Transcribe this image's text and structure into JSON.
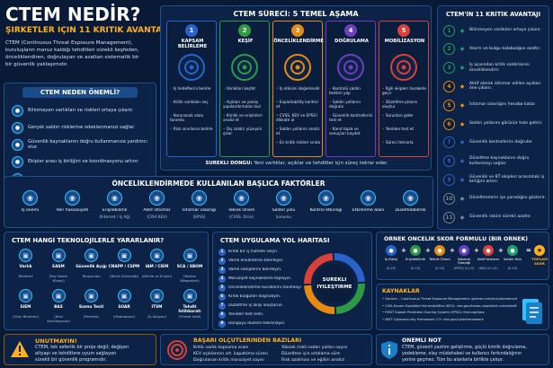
{
  "header": {
    "title": "CTEM NEDİR?",
    "subtitle": "ŞİRKETLER İÇİN 11 KRİTİK AVANTAJ",
    "intro": [
      "CTEM (Continuous Threat Exposure Management),",
      "kuruluşların maruz kaldığı tehditleri sürekli keşfeden,",
      "önceliklendiren, doğrulayan ve azaltan sistematik bir",
      "bir güvenlik yaklaşımıdır."
    ]
  },
  "why": {
    "title": "CTEM NEDEN ÖNEMLİ?",
    "items": [
      "Bilinmeyen varlıkları ve riskleri ortaya çıkarır.",
      "Gerçek saldırı risklerine odaklanmanızı sağlar.",
      "Güvenlik kaynaklarını doğru kullanmanıza yardımcı olur.",
      "Ekipler arası iş birliğini ve koordinasyonu artırır.",
      "Sürekli iyileştirme ile riskleri kalıcı olarak azaltır."
    ]
  },
  "process": {
    "title": "CTEM SÜRECİ: 5 TEMEL AŞAMA",
    "cycle_label": "SÜREKLİ DÖNGÜ:",
    "cycle_text": "Yeni varlıklar, açıklar ve tehditler için süreç tekrar eder.",
    "stages": [
      {
        "num": "1",
        "title": "KAPSAM BELİRLEME",
        "color": "#2a63c8",
        "items": [
          "İş hedeflerini belirle",
          "Kritik varlıkları seç",
          "Korunacak alanı tanımla",
          "Risk sınırlarını belirle"
        ]
      },
      {
        "num": "2",
        "title": "KEŞİF",
        "color": "#2f9a44",
        "items": [
          "Varlıkları keşfet",
          "Açıkları ve yanlış yapılandırmaları bul",
          "Kimlik ve erişimleri analiz et",
          "Dış saldırı yüzeyini çıkar"
        ]
      },
      {
        "num": "3",
        "title": "ÖNCELİKLENDİRME",
        "color": "#e58a12",
        "items": [
          "İş etkisini değerlendir",
          "Exploitability kontrol et",
          "CVSS, KEV ve EPSS'i dikkate al",
          "Saldırı yollarını analiz et",
          "En kritik riskleri sırala"
        ]
      },
      {
        "num": "4",
        "title": "DOĞRULAMA",
        "color": "#6b3fc0",
        "items": [
          "Kontrolü saldırı testleri yap",
          "Saldırı yollarını doğrula",
          "Güvenlik kontrollerini test et",
          "Kanıt topla ve sonuçları kaydet"
        ]
      },
      {
        "num": "5",
        "title": "MOBİLİZASYON",
        "color": "#d8413a",
        "items": [
          "İlgili ekipleri harekete geçir",
          "Düzeltme planını oluştur",
          "Sorunları gider",
          "Yeniden test et",
          "Süreci tekrarla"
        ]
      }
    ]
  },
  "benefits": {
    "title": "CTEM'İN 11 KRİTİK AVANTAJI",
    "items": [
      {
        "num": "1",
        "text": "Bilinmeyen varlıkları ortaya çıkarır.",
        "color": "#1aa36a"
      },
      {
        "num": "2",
        "text": "Alarm ve bulgu kalabalığını azaltır.",
        "color": "#1aa36a"
      },
      {
        "num": "3",
        "text": "İş açısından kritik saldırılarını önceliklendirir.",
        "color": "#1aa36a"
      },
      {
        "num": "4",
        "text": "Aktif olarak istismar edilen açıkları öne çıkarır.",
        "color": "#e58a12"
      },
      {
        "num": "5",
        "text": "İstismar olasılığını hesaba katar.",
        "color": "#e58a12"
      },
      {
        "num": "6",
        "text": "Saldırı yollarını görünür hale getirir.",
        "color": "#e58a12"
      },
      {
        "num": "7",
        "text": "Güvenlik kontrollerini doğrular.",
        "color": "#2a63c8"
      },
      {
        "num": "8",
        "text": "Düzeltme kaynaklarını doğru kullanmayı sağlar.",
        "color": "#2a63c8"
      },
      {
        "num": "9",
        "text": "Güvenlik ve BT ekipleri arasındaki iş birliğini artırır.",
        "color": "#2a63c8"
      },
      {
        "num": "10",
        "text": "Düzeltmelerin işe yaradığını gösterir.",
        "color": "#7a8796"
      },
      {
        "num": "11",
        "text": "Güvenlik riskini sürekli azaltır.",
        "color": "#7a8796"
      }
    ]
  },
  "factors": {
    "title": "ÖNCELİKLENDİRMEDE KULLANILAN BAŞLICA FAKTÖRLER",
    "items": [
      {
        "icon": "briefcase-icon",
        "label": "İş önemi",
        "sub": ""
      },
      {
        "icon": "database-icon",
        "label": "Veri hassasiyeti",
        "sub": ""
      },
      {
        "icon": "globe-icon",
        "label": "Erişilebilirlik",
        "sub": "(İnternet / İç Ağ)"
      },
      {
        "icon": "bug-icon",
        "label": "Aktif istismar",
        "sub": "(CISA KEV)"
      },
      {
        "icon": "gauge-icon",
        "label": "İstismar olasılığı",
        "sub": "(EPSS)"
      },
      {
        "icon": "shield-icon",
        "label": "Teknik Önem",
        "sub": "(CVSS, Ürün)"
      },
      {
        "icon": "path-icon",
        "label": "Saldırı yolu",
        "sub": "konumu"
      },
      {
        "icon": "check-icon",
        "label": "Kontrol etkinliği",
        "sub": ""
      },
      {
        "icon": "users-icon",
        "label": "Etkilenme alanı",
        "sub": ""
      },
      {
        "icon": "wrench-icon",
        "label": "Düzeltilebilirlik",
        "sub": ""
      }
    ]
  },
  "tech": {
    "title": "CTEM HANGİ TEKNOLOJİLERLE YARARLANIR?",
    "items": [
      {
        "label": "Varlık",
        "sub": "Yönetimi"
      },
      {
        "label": "EASM",
        "sub": "(Dış Saldırı Yüzeyi)"
      },
      {
        "label": "Güvenlik Açığı",
        "sub": "Tarayıcıları"
      },
      {
        "label": "CNAPP / CSPM",
        "sub": "(Bulut Güvenliği)"
      },
      {
        "label": "IAM / CIEM",
        "sub": "(Kimlik ve Erişim)"
      },
      {
        "label": "SCA / SBOM",
        "sub": "(Yazılım Bileşenleri)"
      },
      {
        "label": "SIEM",
        "sub": "(Olay Yönetimi)"
      },
      {
        "label": "BAS",
        "sub": "(İhlal Simülasyonu)"
      },
      {
        "label": "Sızma Testi",
        "sub": "(Pentest)"
      },
      {
        "label": "SOAR",
        "sub": "(Otomasyon)"
      },
      {
        "label": "ITSM",
        "sub": "(İş Akışları)"
      },
      {
        "label": "Tehdit İstihbaratı",
        "sub": "(Threat Intel)"
      }
    ]
  },
  "roadmap": {
    "title": "CTEM UYGULAMA YOL HARİTASI",
    "center": [
      "SÜREKLİ",
      "İYİLEŞTİRME"
    ],
    "items": [
      "Kritik bir iş hizmeti seçin.",
      "Varlık envanterini belirleyin.",
      "Varlık sahiplerini belirleyin.",
      "Maruziyet kaynaklarını toplayın.",
      "Önceliklendirme kurallarını tanımlayın.",
      "Kritik bulguları doğrulayın.",
      "Düzeltme iş akışı oluşturun.",
      "Yeniden test edin.",
      "Döngüyü düzenli tekrarlayın."
    ]
  },
  "formula": {
    "title": "ÖRNEK ÖNCELİK SKOR FORMÜLÜ (BİR ÖRNEK)",
    "items": [
      {
        "label": "İş Etkisi",
        "range": "(0-25)"
      },
      {
        "label": "Erişilebilirlik",
        "range": "(0-15)"
      },
      {
        "label": "Teknik Önem",
        "range": "(0-15)"
      },
      {
        "label": "İstismar Olasılığı",
        "range": "(EPSS) (0-15)"
      },
      {
        "label": "Aktif İstismar",
        "range": "(KEV) (0-15)"
      },
      {
        "label": "Saldırı Yolu",
        "range": "(0-10)"
      }
    ],
    "result": "TOPLAM SKOR",
    "op_plus": "+",
    "op_eq": "="
  },
  "sources": {
    "title": "KAYNAKLAR",
    "items": [
      "Gartner – Continuous Threat Exposure Management: gartner.com/en/cybersecurity",
      "CISA Known Exploited Vulnerabilities (KEV): cisa.gov/known-exploited-vulnerabilities-catalog",
      "FIRST Exploit Prediction Scoring System (EPSS): first.org/epss",
      "NIST Cybersecurity Framework 2.0: nist.gov/cyberframework"
    ]
  },
  "footer": {
    "warn_title": "UNUTMAYIN!",
    "warn_text": [
      "CTEM, tek seferlik bir proje değil; değişen",
      "altyapı ve tehditlere uyum sağlayan",
      "sürekli bir güvenlik programıdır."
    ],
    "metrics_title": "BAŞARI ÖLÇÜTLERİNDEN BAZILARI",
    "metrics_left": [
      "Kritik varlık kapsama oranı",
      "KEV açıklarının ort. kapatılma süresi",
      "Doğrulanan kritik maruziyet sayısı"
    ],
    "metrics_right": [
      "Yüksek riskli saldırı yolları sayısı",
      "Düzeltme için ortalama süre",
      "Risk azalması ve eğilim analizi"
    ],
    "note_title": "ÖNEMLİ NOT",
    "note_text": [
      "CTEM, güvenli yazılım geliştirme, güçlü kimlik doğrulama,",
      "yedekleme, olay müdahalesi ve kullanıcı farkındalığının",
      "yerine geçmez. Tüm bu alanlarla birlikte çalışır."
    ]
  },
  "colors": {
    "bg": "#081a35",
    "panel": "#0c2347",
    "border": "#1d4f8c",
    "accent": "#ffb020",
    "cyan": "#2ec5ff",
    "red": "#d8413a"
  }
}
